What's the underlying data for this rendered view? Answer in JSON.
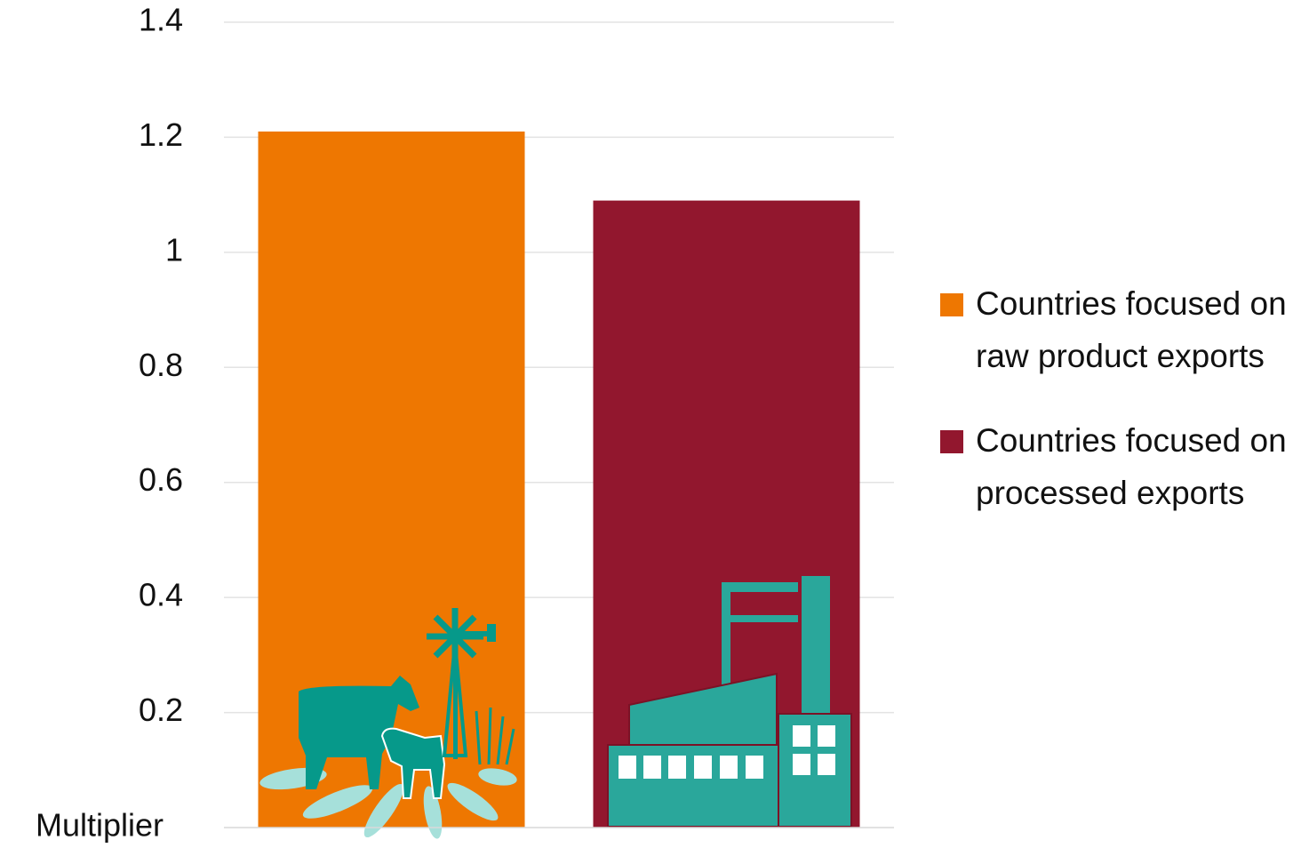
{
  "chart_data": {
    "type": "bar",
    "y_label": "Multiplier",
    "series": [
      {
        "name": "Countries focused on raw product exports",
        "color": "#ee7701",
        "values": [
          1.21
        ]
      },
      {
        "name": "Countries focused on processed exports",
        "color": "#92172e",
        "values": [
          1.09
        ]
      }
    ],
    "ylim": [
      0,
      1.4
    ],
    "yticks": [
      0.2,
      0.4,
      0.6,
      0.8,
      1,
      1.2,
      1.4
    ],
    "grid": true
  }
}
